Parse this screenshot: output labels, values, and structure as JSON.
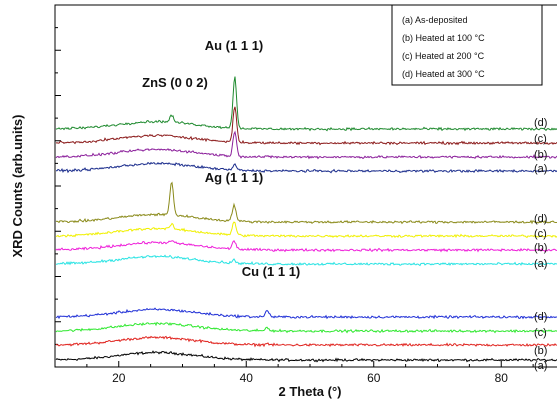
{
  "chart_data": {
    "type": "line",
    "ylabel": "XRD Counts (arb.units)",
    "xlabel": "2 Theta (°)",
    "xlim": [
      10,
      90
    ],
    "xticks": [
      20,
      40,
      60,
      80
    ],
    "grid": false,
    "legend_position": "top-right",
    "legend": [
      "(a)   As-deposited",
      "(b)   Heated at 100 °C",
      "(c)   Heated at 200 °C",
      "(d)   Heated at 300 °C"
    ],
    "peak_annotations": [
      {
        "text": "Au (1 1 1)",
        "x": 38.2
      },
      {
        "text": "ZnS (0 0 2)",
        "x": 28.5
      },
      {
        "text": "Ag (1 1 1)",
        "x": 38.1
      },
      {
        "text": "Cu (1 1 1)",
        "x": 43.3
      }
    ],
    "groups": [
      {
        "element": "Cu",
        "series": [
          {
            "label": "(a)",
            "color": "#000000",
            "peaks": []
          },
          {
            "label": "(b)",
            "color": "#e0231e",
            "peaks": [
              {
                "x": 43.3,
                "h": 0.1
              }
            ]
          },
          {
            "label": "(c)",
            "color": "#2ee82e",
            "peaks": [
              {
                "x": 43.3,
                "h": 0.25
              }
            ]
          },
          {
            "label": "(d)",
            "color": "#1f2fd6",
            "peaks": [
              {
                "x": 43.3,
                "h": 0.45
              }
            ]
          }
        ]
      },
      {
        "element": "Ag",
        "series": [
          {
            "label": "(a)",
            "color": "#27e3e3",
            "peaks": [
              {
                "x": 38.1,
                "h": 0.2
              }
            ]
          },
          {
            "label": "(b)",
            "color": "#ee1fd9",
            "peaks": [
              {
                "x": 28.3,
                "h": 0.15
              },
              {
                "x": 38.1,
                "h": 0.55
              }
            ]
          },
          {
            "label": "(c)",
            "color": "#f0f000",
            "peaks": [
              {
                "x": 28.3,
                "h": 0.3
              },
              {
                "x": 38.1,
                "h": 0.9
              }
            ]
          },
          {
            "label": "(d)",
            "color": "#8a8a1a",
            "peaks": [
              {
                "x": 28.3,
                "h": 2.2
              },
              {
                "x": 38.1,
                "h": 1.1
              }
            ]
          }
        ]
      },
      {
        "element": "Au",
        "series": [
          {
            "label": "(a)",
            "color": "#1a2c8c",
            "peaks": [
              {
                "x": 38.2,
                "h": 0.35
              }
            ]
          },
          {
            "label": "(b)",
            "color": "#8b1f9b",
            "peaks": [
              {
                "x": 38.2,
                "h": 1.6
              }
            ]
          },
          {
            "label": "(c)",
            "color": "#8b1a1a",
            "peaks": [
              {
                "x": 38.2,
                "h": 2.4
              }
            ]
          },
          {
            "label": "(d)",
            "color": "#1e8a2e",
            "peaks": [
              {
                "x": 28.3,
                "h": 0.45
              },
              {
                "x": 38.2,
                "h": 3.4
              }
            ]
          }
        ]
      }
    ]
  }
}
